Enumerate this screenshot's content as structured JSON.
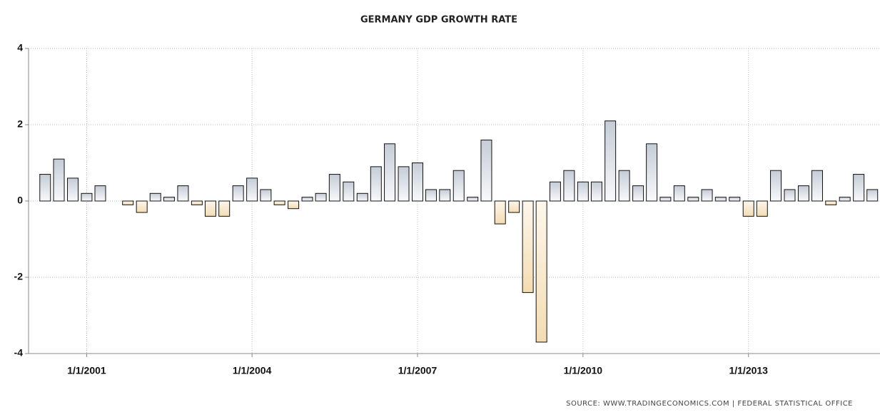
{
  "chart_data": {
    "type": "bar",
    "title": "GERMANY GDP GROWTH RATE",
    "source": "SOURCE:  WWW.TRADINGECONOMICS.COM  |  FEDERAL  STATISTICAL  OFFICE",
    "x": [
      "2000-04-01",
      "2000-07-01",
      "2000-10-01",
      "2001-01-01",
      "2001-04-01",
      "2001-07-01",
      "2001-10-01",
      "2002-01-01",
      "2002-04-01",
      "2002-07-01",
      "2002-10-01",
      "2003-01-01",
      "2003-04-01",
      "2003-07-01",
      "2003-10-01",
      "2004-01-01",
      "2004-04-01",
      "2004-07-01",
      "2004-10-01",
      "2005-01-01",
      "2005-04-01",
      "2005-07-01",
      "2005-10-01",
      "2006-01-01",
      "2006-04-01",
      "2006-07-01",
      "2006-10-01",
      "2007-01-01",
      "2007-04-01",
      "2007-07-01",
      "2007-10-01",
      "2008-01-01",
      "2008-04-01",
      "2008-07-01",
      "2008-10-01",
      "2009-01-01",
      "2009-04-01",
      "2009-07-01",
      "2009-10-01",
      "2010-01-01",
      "2010-04-01",
      "2010-07-01",
      "2010-10-01",
      "2011-01-01",
      "2011-04-01",
      "2011-07-01",
      "2011-10-01",
      "2012-01-01",
      "2012-04-01",
      "2012-07-01",
      "2012-10-01",
      "2013-01-01",
      "2013-04-01",
      "2013-07-01",
      "2013-10-01",
      "2014-01-01",
      "2014-04-01",
      "2014-07-01",
      "2014-10-01",
      "2015-01-01",
      "2015-04-01"
    ],
    "values": [
      0.7,
      1.1,
      0.6,
      0.2,
      0.4,
      0,
      -0.1,
      -0.3,
      0.2,
      0.1,
      0.4,
      -0.1,
      -0.4,
      -0.4,
      0.4,
      0.6,
      0.3,
      -0.1,
      -0.2,
      0.1,
      0.2,
      0.7,
      0.5,
      0.2,
      0.9,
      1.5,
      0.9,
      1.0,
      0.3,
      0.3,
      0.8,
      0.1,
      1.6,
      -0.6,
      -0.3,
      -2.4,
      -3.7,
      0.5,
      0.8,
      0.5,
      0.5,
      2.1,
      0.8,
      0.4,
      1.5,
      0.1,
      0.4,
      0.1,
      0.3,
      0.1,
      0.1,
      -0.4,
      -0.4,
      0.8,
      0.3,
      0.4,
      0.8,
      -0.1,
      0.1,
      0.7,
      0.3
    ],
    "positive_color": "#c5ccd6",
    "negative_color": "#f3dcb2",
    "xlim": [
      "1999-12-13",
      "2015-05-22"
    ],
    "xticks": [
      {
        "value": "2001-01-01",
        "label": "1/1/2001"
      },
      {
        "value": "2004-01-01",
        "label": "1/1/2004"
      },
      {
        "value": "2007-01-01",
        "label": "1/1/2007"
      },
      {
        "value": "2010-01-01",
        "label": "1/1/2010"
      },
      {
        "value": "2013-01-01",
        "label": "1/1/2013"
      }
    ],
    "ylim": [
      -4,
      4
    ],
    "yticks": [
      -4,
      -2,
      0,
      2,
      4
    ],
    "grid": true
  }
}
